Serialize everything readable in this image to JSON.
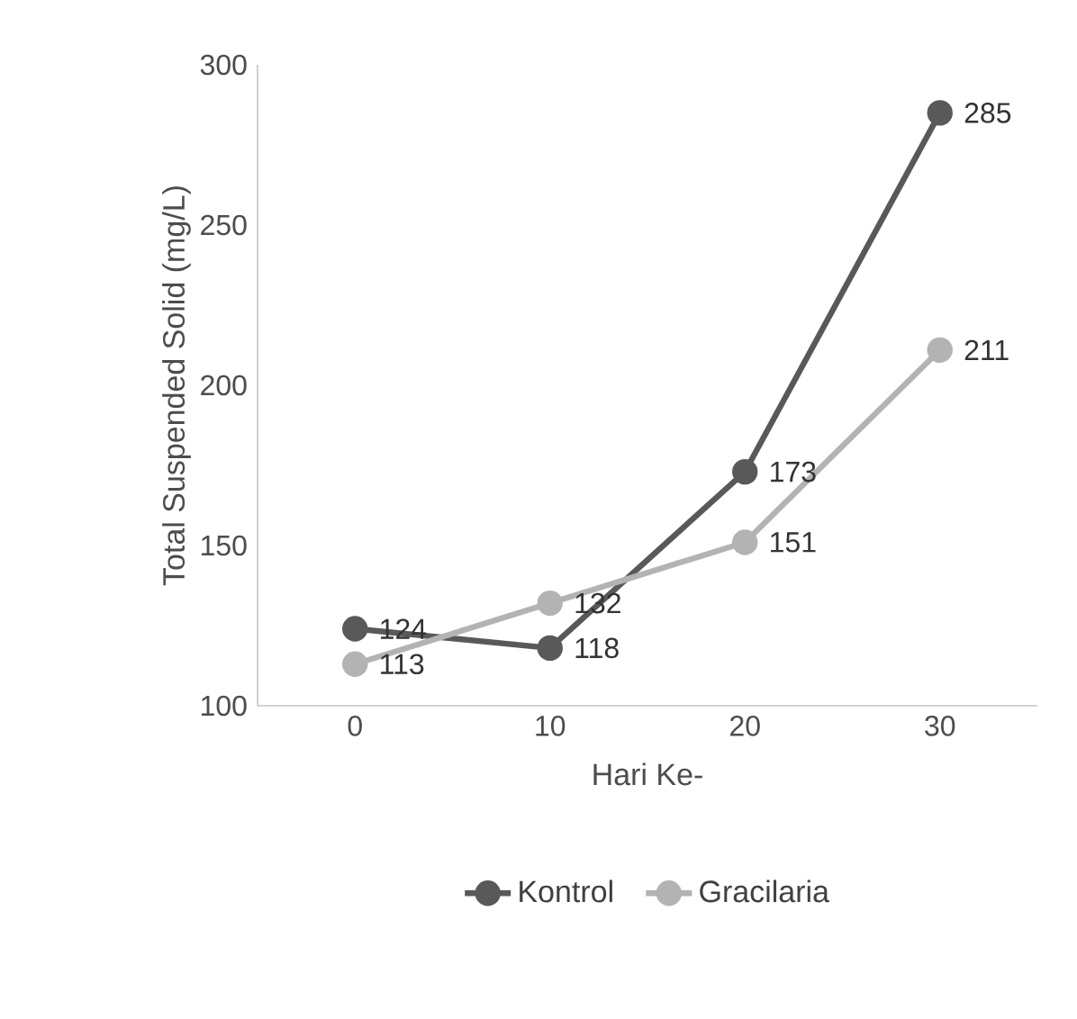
{
  "chart_data": {
    "type": "line",
    "xlabel": "Hari Ke-",
    "ylabel": "Total Suspended Solid (mg/L)",
    "categories": [
      "0",
      "10",
      "20",
      "30"
    ],
    "ylim": [
      100,
      300
    ],
    "yticks": [
      100,
      150,
      200,
      250,
      300
    ],
    "grid": false,
    "legend": "bottom",
    "marker": "circle",
    "line_style": "solid",
    "data_labels": true,
    "series": [
      {
        "name": "Kontrol",
        "color": "#595959",
        "values": [
          124,
          118,
          173,
          285
        ]
      },
      {
        "name": "Gracilaria",
        "color": "#b3b3b3",
        "values": [
          113,
          132,
          151,
          211
        ]
      }
    ]
  }
}
